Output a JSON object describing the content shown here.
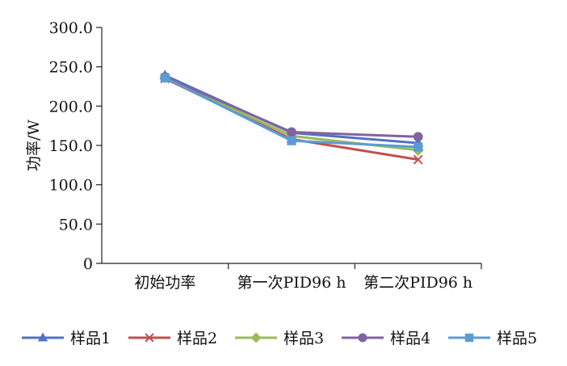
{
  "chart_data": {
    "type": "line",
    "ylabel": "功率/W",
    "xlabel": "",
    "categories": [
      "初始功率",
      "第一次PID96 h",
      "第二次PID96 h"
    ],
    "ylim": [
      0,
      300
    ],
    "yticks": [
      0,
      50,
      100,
      150,
      200,
      250,
      300
    ],
    "ytick_labels": [
      "0",
      "50.0",
      "100.0",
      "150.0",
      "200.0",
      "250.0",
      "300.0"
    ],
    "grid": false,
    "legend_position": "bottom",
    "series": [
      {
        "name": "样品1",
        "values": [
          239,
          166,
          153
        ],
        "color": "#5470c6",
        "marker": "triangle"
      },
      {
        "name": "样品2",
        "values": [
          235,
          158,
          132
        ],
        "color": "#c0504d",
        "marker": "x"
      },
      {
        "name": "样品3",
        "values": [
          236,
          162,
          144
        ],
        "color": "#9bbb59",
        "marker": "diamond"
      },
      {
        "name": "样品4",
        "values": [
          237,
          167,
          161
        ],
        "color": "#8064a2",
        "marker": "circle"
      },
      {
        "name": "样品5",
        "values": [
          236,
          156,
          148
        ],
        "color": "#5b9bd5",
        "marker": "square"
      }
    ]
  }
}
